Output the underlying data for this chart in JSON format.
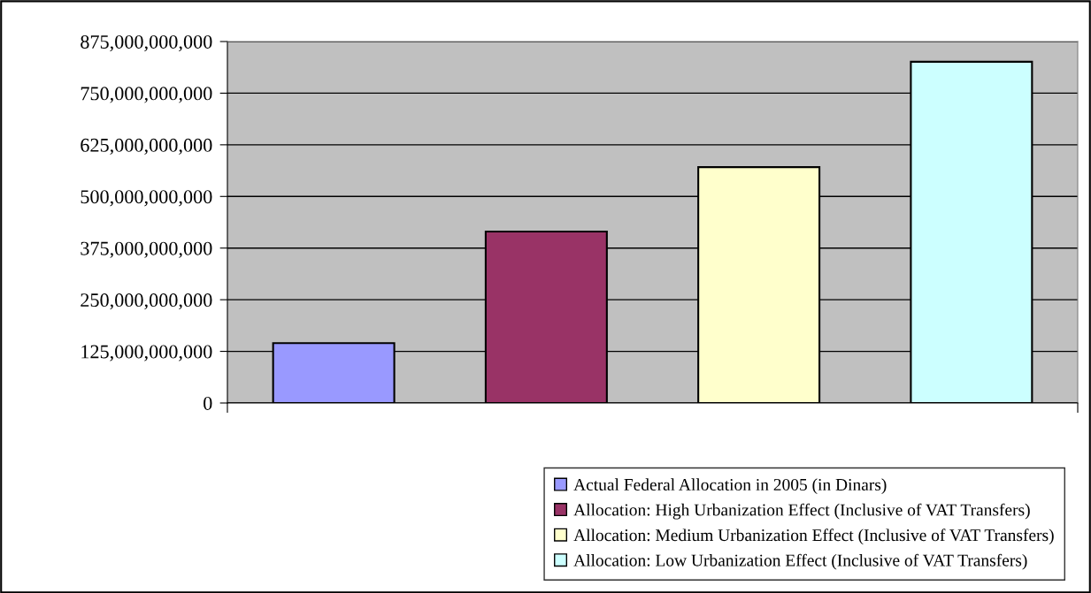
{
  "chart_data": {
    "type": "bar",
    "categories": [
      null
    ],
    "series": [
      {
        "name": "Actual Federal Allocation in 2005 (in Dinars)",
        "color": "#9999ff",
        "values": [
          145000000000
        ]
      },
      {
        "name": "Allocation: High Urbanization Effect (Inclusive of VAT Transfers)",
        "color": "#993366",
        "values": [
          415000000000
        ]
      },
      {
        "name": "Allocation: Medium Urbanization Effect (Inclusive of VAT Transfers)",
        "color": "#ffffcc",
        "values": [
          571000000000
        ]
      },
      {
        "name": "Allocation: Low Urbanization Effect (Inclusive of VAT Transfers)",
        "color": "#ccffff",
        "values": [
          826000000000
        ]
      }
    ],
    "ylim": [
      0,
      875000000000
    ],
    "yticks": [
      {
        "value": 0,
        "label": "0"
      },
      {
        "value": 125000000000,
        "label": "125,000,000,000"
      },
      {
        "value": 250000000000,
        "label": "250,000,000,000"
      },
      {
        "value": 375000000000,
        "label": "375,000,000,000"
      },
      {
        "value": 500000000000,
        "label": "500,000,000,000"
      },
      {
        "value": 625000000000,
        "label": "625,000,000,000"
      },
      {
        "value": 750000000000,
        "label": "750,000,000,000"
      },
      {
        "value": 875000000000,
        "label": "875,000,000,000"
      }
    ],
    "grid": "y",
    "legend": "bottom"
  }
}
